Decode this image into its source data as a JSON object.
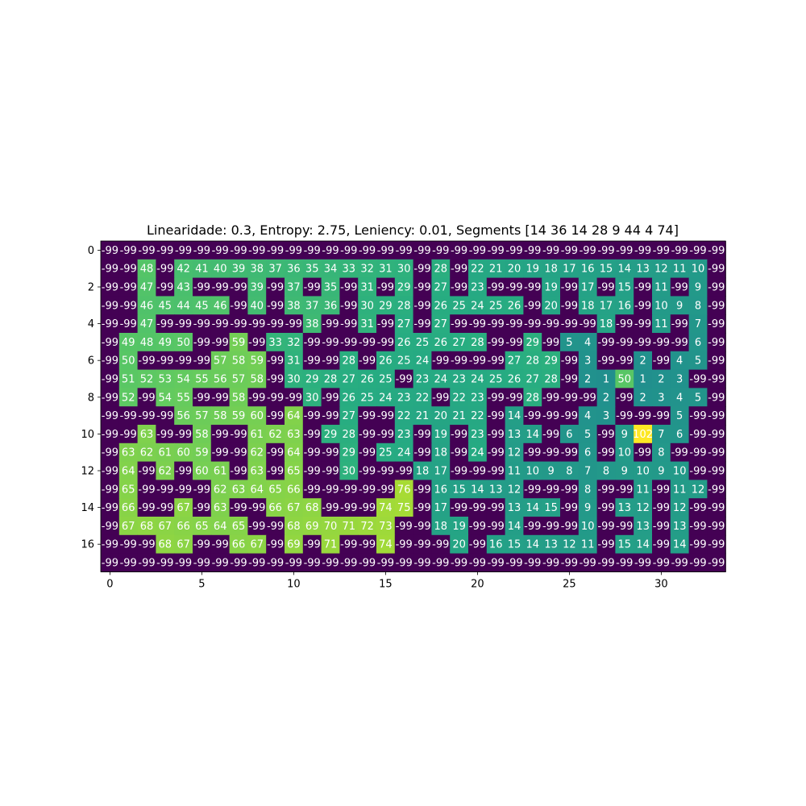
{
  "chart_data": {
    "type": "heatmap",
    "title": "Linearidade: 0.3, Entropy: 2.75, Leniency: 0.01, Segments [14 36 14 28  9 44  4 74]",
    "xlabel": "",
    "ylabel": "",
    "colormap": "viridis",
    "value_range": [
      -99,
      102
    ],
    "xticks": [
      0,
      5,
      10,
      15,
      20,
      25,
      30
    ],
    "yticks": [
      0,
      2,
      4,
      6,
      8,
      10,
      12,
      14,
      16
    ],
    "n_rows": 18,
    "n_cols": 34,
    "cell_text_color": "#ffffff",
    "values": [
      [
        -99,
        -99,
        -99,
        -99,
        -99,
        -99,
        -99,
        -99,
        -99,
        -99,
        -99,
        -99,
        -99,
        -99,
        -99,
        -99,
        -99,
        -99,
        -99,
        -99,
        -99,
        -99,
        -99,
        -99,
        -99,
        -99,
        -99,
        -99,
        -99,
        -99,
        -99,
        -99,
        -99,
        -99
      ],
      [
        -99,
        -99,
        48,
        -99,
        42,
        41,
        40,
        39,
        38,
        37,
        36,
        35,
        34,
        33,
        32,
        31,
        30,
        -99,
        28,
        -99,
        22,
        21,
        20,
        19,
        18,
        17,
        16,
        15,
        14,
        13,
        12,
        11,
        10,
        -99
      ],
      [
        -99,
        -99,
        47,
        -99,
        43,
        -99,
        -99,
        -99,
        39,
        -99,
        37,
        -99,
        35,
        -99,
        31,
        -99,
        29,
        -99,
        27,
        -99,
        23,
        -99,
        -99,
        -99,
        19,
        -99,
        17,
        -99,
        15,
        -99,
        11,
        -99,
        9,
        -99
      ],
      [
        -99,
        -99,
        46,
        45,
        44,
        45,
        46,
        -99,
        40,
        -99,
        38,
        37,
        36,
        -99,
        30,
        29,
        28,
        -99,
        26,
        25,
        24,
        25,
        26,
        -99,
        20,
        -99,
        18,
        17,
        16,
        -99,
        10,
        9,
        8,
        -99
      ],
      [
        -99,
        -99,
        47,
        -99,
        -99,
        -99,
        -99,
        -99,
        -99,
        -99,
        -99,
        38,
        -99,
        -99,
        31,
        -99,
        27,
        -99,
        27,
        -99,
        -99,
        -99,
        -99,
        -99,
        -99,
        -99,
        -99,
        18,
        -99,
        -99,
        11,
        -99,
        7,
        -99
      ],
      [
        -99,
        49,
        48,
        49,
        50,
        -99,
        -99,
        59,
        -99,
        33,
        32,
        -99,
        -99,
        -99,
        -99,
        -99,
        26,
        25,
        26,
        27,
        28,
        -99,
        -99,
        29,
        -99,
        5,
        4,
        -99,
        -99,
        -99,
        -99,
        -99,
        6,
        -99
      ],
      [
        -99,
        50,
        -99,
        -99,
        -99,
        -99,
        57,
        58,
        59,
        -99,
        31,
        -99,
        -99,
        28,
        -99,
        26,
        25,
        24,
        -99,
        -99,
        -99,
        -99,
        27,
        28,
        29,
        -99,
        3,
        -99,
        -99,
        2,
        -99,
        4,
        5,
        -99
      ],
      [
        -99,
        51,
        52,
        53,
        54,
        55,
        56,
        57,
        58,
        -99,
        30,
        29,
        28,
        27,
        26,
        25,
        -99,
        23,
        24,
        23,
        24,
        25,
        26,
        27,
        28,
        -99,
        2,
        1,
        50,
        1,
        2,
        3,
        -99,
        -99
      ],
      [
        -99,
        52,
        -99,
        54,
        55,
        -99,
        -99,
        58,
        -99,
        -99,
        -99,
        30,
        -99,
        26,
        25,
        24,
        23,
        22,
        -99,
        22,
        23,
        -99,
        -99,
        28,
        -99,
        -99,
        -99,
        2,
        -99,
        2,
        3,
        4,
        5,
        -99
      ],
      [
        -99,
        -99,
        -99,
        -99,
        56,
        57,
        58,
        59,
        60,
        -99,
        64,
        -99,
        -99,
        27,
        -99,
        -99,
        22,
        21,
        20,
        21,
        22,
        -99,
        14,
        -99,
        -99,
        -99,
        4,
        3,
        -99,
        -99,
        -99,
        5,
        -99,
        -99
      ],
      [
        -99,
        -99,
        63,
        -99,
        -99,
        58,
        -99,
        -99,
        61,
        62,
        63,
        -99,
        29,
        28,
        -99,
        -99,
        23,
        -99,
        19,
        -99,
        23,
        -99,
        13,
        14,
        -99,
        6,
        5,
        -99,
        9,
        102,
        7,
        6,
        -99,
        -99
      ],
      [
        -99,
        63,
        62,
        61,
        60,
        59,
        -99,
        -99,
        62,
        -99,
        64,
        -99,
        -99,
        29,
        -99,
        25,
        24,
        -99,
        18,
        -99,
        24,
        -99,
        12,
        -99,
        -99,
        -99,
        6,
        -99,
        10,
        -99,
        8,
        -99,
        -99,
        -99
      ],
      [
        -99,
        64,
        -99,
        62,
        -99,
        60,
        61,
        -99,
        63,
        -99,
        65,
        -99,
        -99,
        30,
        -99,
        -99,
        -99,
        18,
        17,
        -99,
        -99,
        -99,
        11,
        10,
        9,
        8,
        7,
        8,
        9,
        10,
        9,
        10,
        -99,
        -99
      ],
      [
        -99,
        65,
        -99,
        -99,
        -99,
        -99,
        62,
        63,
        64,
        65,
        66,
        -99,
        -99,
        -99,
        -99,
        -99,
        76,
        -99,
        16,
        15,
        14,
        13,
        12,
        -99,
        -99,
        -99,
        8,
        -99,
        -99,
        11,
        -99,
        11,
        12,
        -99
      ],
      [
        -99,
        66,
        -99,
        -99,
        67,
        -99,
        63,
        -99,
        -99,
        66,
        67,
        68,
        -99,
        -99,
        -99,
        74,
        75,
        -99,
        17,
        -99,
        -99,
        -99,
        13,
        14,
        15,
        -99,
        9,
        -99,
        13,
        12,
        -99,
        12,
        -99,
        -99
      ],
      [
        -99,
        67,
        68,
        67,
        66,
        65,
        64,
        65,
        -99,
        -99,
        68,
        69,
        70,
        71,
        72,
        73,
        -99,
        -99,
        18,
        19,
        -99,
        -99,
        14,
        -99,
        -99,
        -99,
        10,
        -99,
        -99,
        13,
        -99,
        13,
        -99,
        -99
      ],
      [
        -99,
        -99,
        -99,
        68,
        67,
        -99,
        -99,
        66,
        67,
        -99,
        69,
        -99,
        71,
        -99,
        -99,
        74,
        -99,
        -99,
        -99,
        20,
        -99,
        16,
        15,
        14,
        13,
        12,
        11,
        -99,
        15,
        14,
        -99,
        14,
        -99,
        -99
      ],
      [
        -99,
        -99,
        -99,
        -99,
        -99,
        -99,
        -99,
        -99,
        -99,
        -99,
        -99,
        -99,
        -99,
        -99,
        -99,
        -99,
        -99,
        -99,
        -99,
        -99,
        -99,
        -99,
        -99,
        -99,
        -99,
        -99,
        -99,
        -99,
        -99,
        -99,
        -99,
        -99,
        -99,
        -99
      ]
    ]
  }
}
